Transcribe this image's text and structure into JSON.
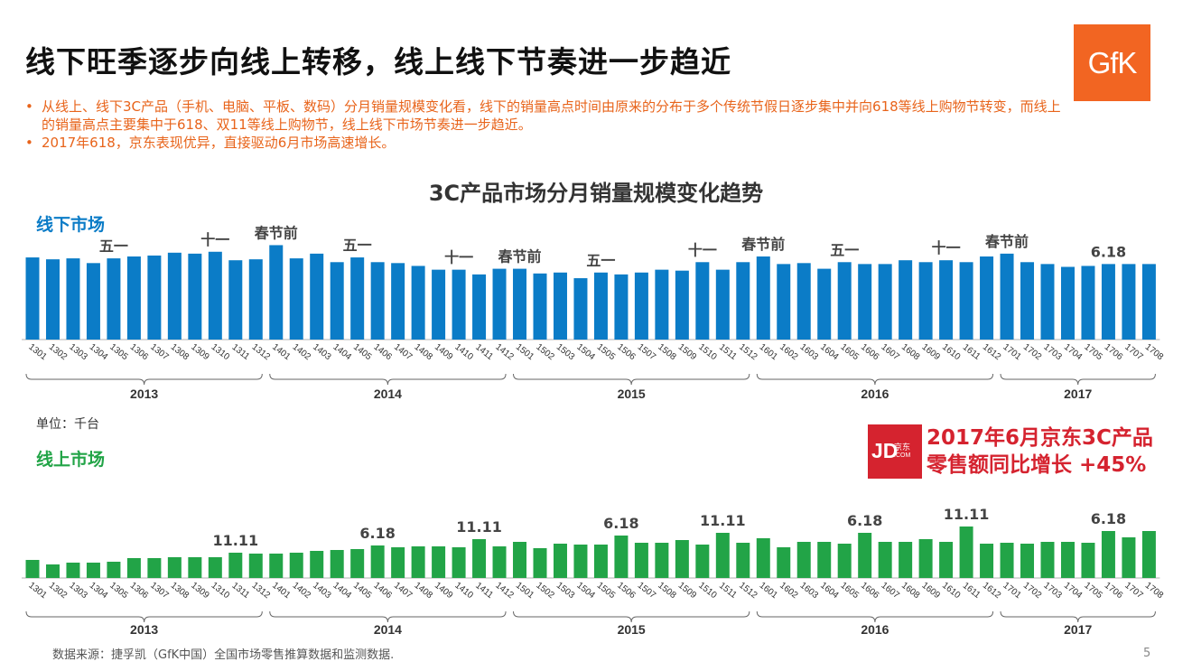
{
  "title": "线下旺季逐步向线上转移，线上线下节奏进一步趋近",
  "logo_text": "GfK",
  "bullets": [
    "从线上、线下3C产品（手机、电脑、平板、数码）分月销量规模变化看，线下的销量高点时间由原来的分布于多个传统节假日逐步集中并向618等线上购物节转变，而线上的销量高点主要集中于618、双11等线上购物节，线上线下市场节奏进一步趋近。",
    "2017年618，京东表现优异，直接驱动6月市场高速增长。"
  ],
  "unit": "单位：千台",
  "jd_logo": {
    "mark": "JD",
    "cn": "京东",
    "com": ".COM"
  },
  "jd_note": [
    "2017年6月京东3C产品",
    "零售额同比增长 +45%"
  ],
  "footer": "数据来源：捷孚凯（GfK中国）全国市场零售推算数据和监测数据.",
  "page_number": "5",
  "colors": {
    "offline": "#0b7cc7",
    "online": "#22a447",
    "accent": "#e8641b",
    "jd": "#d5232f"
  },
  "chart_data": [
    {
      "type": "bar",
      "title": "3C产品市场分月销量规模变化趋势",
      "section_label": "线下市场",
      "color": "#0b7cc7",
      "categories": [
        "1301",
        "1302",
        "1303",
        "1304",
        "1305",
        "1306",
        "1307",
        "1308",
        "1309",
        "1310",
        "1311",
        "1312",
        "1401",
        "1402",
        "1403",
        "1404",
        "1405",
        "1406",
        "1407",
        "1408",
        "1409",
        "1410",
        "1411",
        "1412",
        "1501",
        "1502",
        "1503",
        "1504",
        "1505",
        "1506",
        "1507",
        "1508",
        "1509",
        "1510",
        "1511",
        "1512",
        "1601",
        "1602",
        "1603",
        "1604",
        "1605",
        "1606",
        "1607",
        "1608",
        "1609",
        "1610",
        "1611",
        "1612",
        "1701",
        "1702",
        "1703",
        "1704",
        "1705",
        "1706",
        "1707",
        "1708"
      ],
      "values": [
        87,
        85,
        86,
        81,
        86,
        88,
        89,
        92,
        91,
        93,
        84,
        85,
        100,
        86,
        91,
        82,
        87,
        82,
        81,
        78,
        74,
        74,
        69,
        75,
        75,
        70,
        71,
        65,
        71,
        69,
        71,
        74,
        73,
        82,
        74,
        82,
        88,
        80,
        81,
        75,
        82,
        80,
        80,
        84,
        82,
        84,
        82,
        88,
        91,
        82,
        80,
        77,
        78,
        80,
        80,
        80
      ],
      "ylim": [
        0,
        110
      ],
      "annotations": [
        {
          "index": 4,
          "text": "五一"
        },
        {
          "index": 9,
          "text": "十一"
        },
        {
          "index": 12,
          "text": "春节前"
        },
        {
          "index": 16,
          "text": "五一"
        },
        {
          "index": 21,
          "text": "十一"
        },
        {
          "index": 24,
          "text": "春节前"
        },
        {
          "index": 28,
          "text": "五一"
        },
        {
          "index": 33,
          "text": "十一"
        },
        {
          "index": 36,
          "text": "春节前"
        },
        {
          "index": 40,
          "text": "五一"
        },
        {
          "index": 45,
          "text": "十一"
        },
        {
          "index": 48,
          "text": "春节前"
        },
        {
          "index": 53,
          "text": "6.18"
        }
      ],
      "year_groups": [
        {
          "label": "2013",
          "start": 0,
          "end": 11
        },
        {
          "label": "2014",
          "start": 12,
          "end": 23
        },
        {
          "label": "2015",
          "start": 24,
          "end": 35
        },
        {
          "label": "2016",
          "start": 36,
          "end": 47
        },
        {
          "label": "2017",
          "start": 48,
          "end": 55
        }
      ]
    },
    {
      "type": "bar",
      "section_label": "线上市场",
      "color": "#22a447",
      "categories": [
        "1301",
        "1302",
        "1303",
        "1304",
        "1305",
        "1306",
        "1307",
        "1308",
        "1309",
        "1310",
        "1311",
        "1312",
        "1401",
        "1402",
        "1403",
        "1404",
        "1405",
        "1406",
        "1407",
        "1408",
        "1409",
        "1410",
        "1411",
        "1412",
        "1501",
        "1502",
        "1503",
        "1504",
        "1505",
        "1506",
        "1507",
        "1508",
        "1509",
        "1510",
        "1511",
        "1512",
        "1601",
        "1602",
        "1603",
        "1604",
        "1605",
        "1606",
        "1607",
        "1608",
        "1609",
        "1610",
        "1611",
        "1612",
        "1701",
        "1702",
        "1703",
        "1704",
        "1705",
        "1706",
        "1707",
        "1708"
      ],
      "values": [
        20,
        15,
        17,
        17,
        18,
        22,
        22,
        23,
        23,
        23,
        28,
        27,
        27,
        28,
        30,
        31,
        32,
        36,
        34,
        35,
        35,
        34,
        43,
        35,
        40,
        33,
        38,
        37,
        37,
        47,
        39,
        39,
        42,
        37,
        50,
        39,
        44,
        34,
        40,
        40,
        38,
        50,
        40,
        40,
        43,
        40,
        57,
        38,
        39,
        38,
        40,
        40,
        39,
        52,
        45,
        52
      ],
      "ylim": [
        0,
        110
      ],
      "annotations": [
        {
          "index": 10,
          "text": "11.11"
        },
        {
          "index": 17,
          "text": "6.18"
        },
        {
          "index": 22,
          "text": "11.11"
        },
        {
          "index": 29,
          "text": "6.18"
        },
        {
          "index": 34,
          "text": "11.11"
        },
        {
          "index": 41,
          "text": "6.18"
        },
        {
          "index": 46,
          "text": "11.11"
        },
        {
          "index": 53,
          "text": "6.18"
        }
      ],
      "year_groups": [
        {
          "label": "2013",
          "start": 0,
          "end": 11
        },
        {
          "label": "2014",
          "start": 12,
          "end": 23
        },
        {
          "label": "2015",
          "start": 24,
          "end": 35
        },
        {
          "label": "2016",
          "start": 36,
          "end": 47
        },
        {
          "label": "2017",
          "start": 48,
          "end": 55
        }
      ]
    }
  ]
}
